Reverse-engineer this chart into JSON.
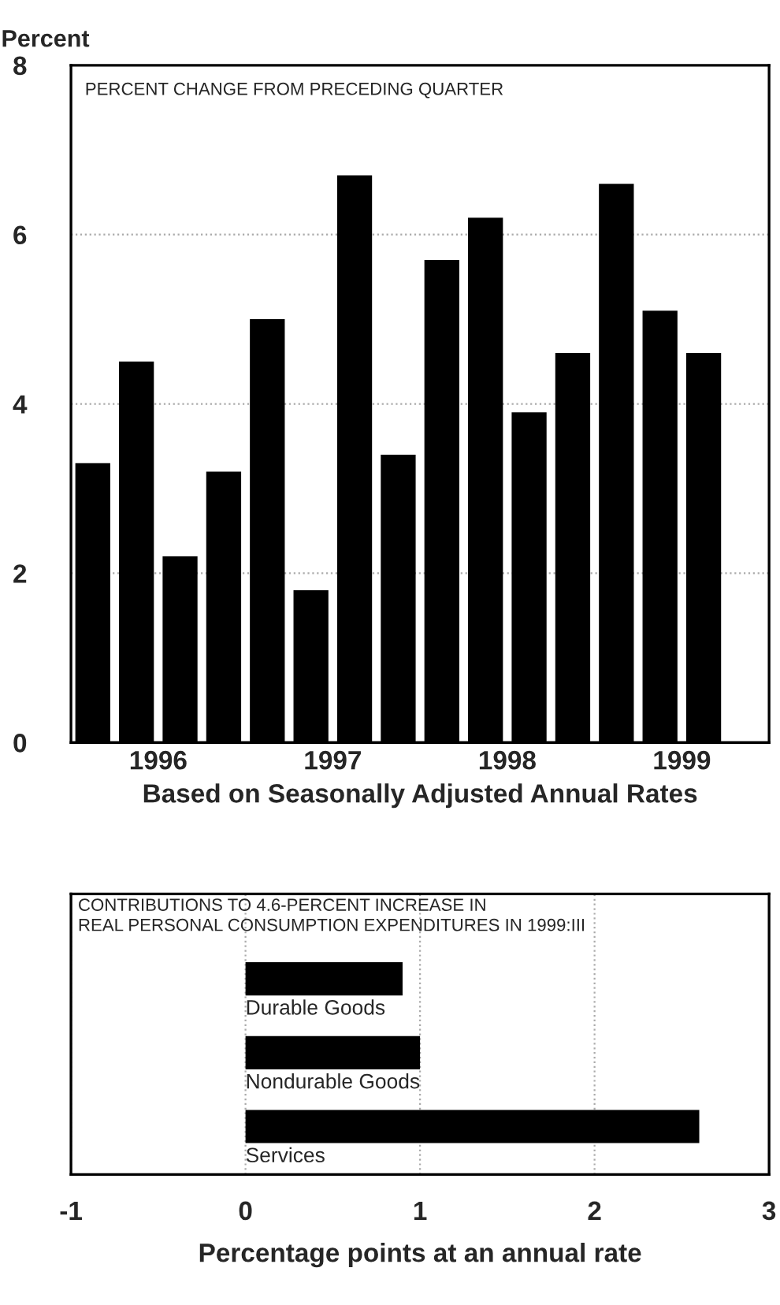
{
  "chart_data": [
    {
      "type": "bar",
      "subtitle": "PERCENT CHANGE FROM PRECEDING QUARTER",
      "ylabel": "Percent",
      "xlabel": "Based on Seasonally Adjusted Annual Rates",
      "x": [
        1996.125,
        1996.375,
        1996.625,
        1996.875,
        1997.125,
        1997.375,
        1997.625,
        1997.875,
        1998.125,
        1998.375,
        1998.625,
        1998.875,
        1999.125,
        1999.375,
        1999.625
      ],
      "values": [
        3.3,
        4.5,
        2.2,
        3.2,
        5.0,
        1.8,
        6.7,
        3.4,
        5.7,
        6.2,
        3.9,
        4.6,
        6.6,
        5.1,
        4.6
      ],
      "color": "#000000",
      "xlim": [
        1996,
        2000
      ],
      "xticks": [
        {
          "value": 1996.5,
          "label": "1996"
        },
        {
          "value": 1997.5,
          "label": "1997"
        },
        {
          "value": 1998.5,
          "label": "1998"
        },
        {
          "value": 1999.5,
          "label": "1999"
        }
      ],
      "ylim": [
        0,
        8
      ],
      "yticks": [
        0,
        2,
        4,
        6,
        8
      ],
      "grid": "y"
    },
    {
      "type": "bar",
      "orientation": "horizontal",
      "subtitle": "CONTRIBUTIONS TO 4.6-PERCENT INCREASE IN\nREAL PERSONAL CONSUMPTION EXPENDITURES IN 1999:III",
      "xlabel": "Percentage points at an annual rate",
      "categories": [
        "Durable Goods",
        "Nondurable Goods",
        "Services"
      ],
      "values": [
        0.9,
        1.0,
        2.6
      ],
      "color": "#000000",
      "xlim": [
        -1,
        3
      ],
      "xticks": [
        -1,
        0,
        1,
        2,
        3
      ],
      "grid": "x"
    }
  ]
}
